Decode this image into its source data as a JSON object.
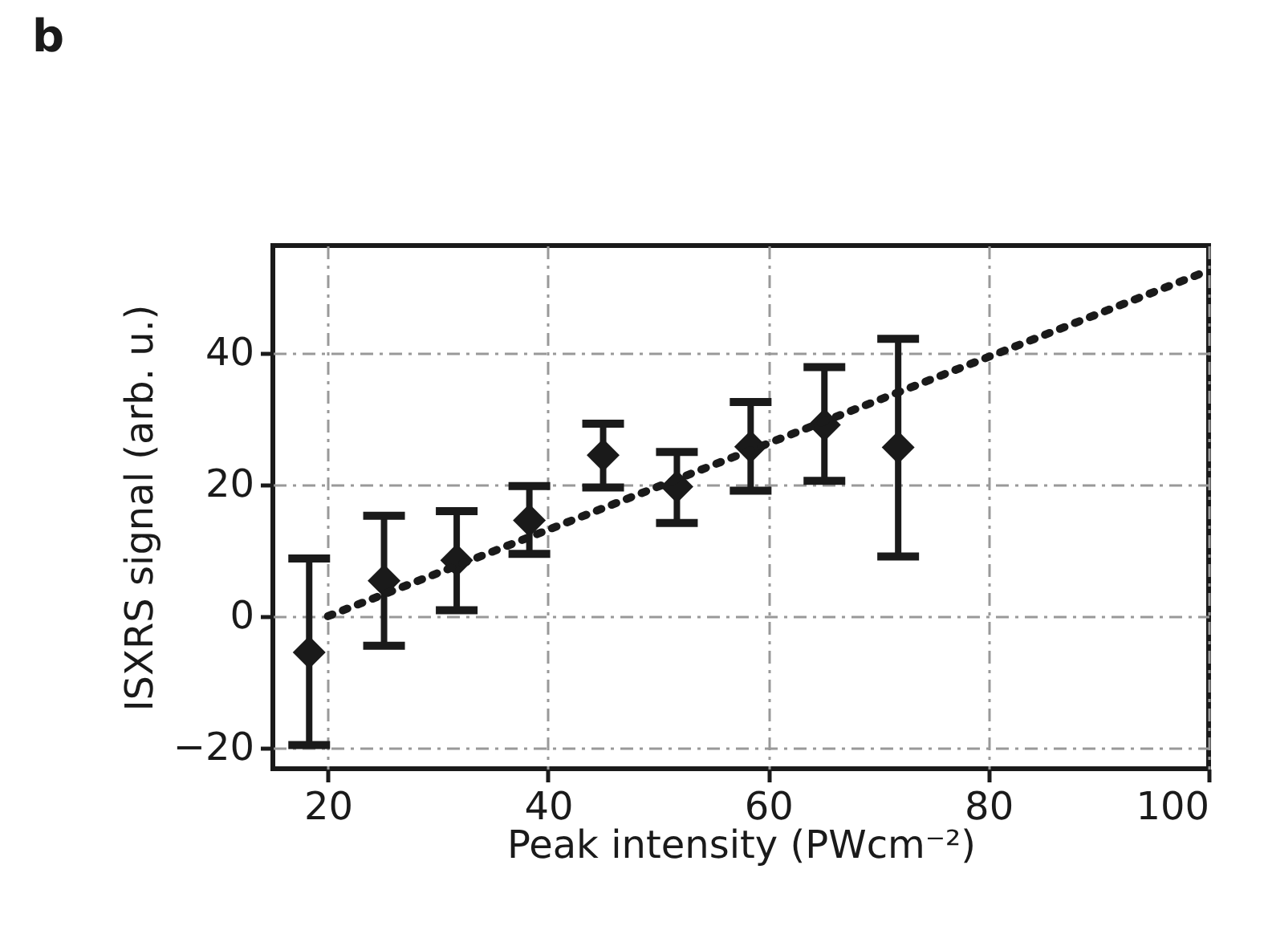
{
  "chart_data": {
    "type": "scatter",
    "title": "b",
    "xlabel": "Peak intensity (PWcm⁻²)",
    "ylabel": "ISXRS signal (arb. u.)",
    "xlim": [
      15,
      100
    ],
    "ylim": [
      -23.2,
      56.4
    ],
    "xticks": [
      20,
      40,
      60,
      80,
      100
    ],
    "yticks": [
      -20,
      0,
      20,
      40
    ],
    "grid": true,
    "series": [
      {
        "type": "scatter",
        "color": "#1a1a1a",
        "marker": "diamond",
        "x": [
          18.3,
          25.1,
          31.7,
          38.3,
          45.0,
          51.7,
          58.4,
          65.1,
          71.8
        ],
        "values": [
          -5.5,
          5.4,
          8.5,
          14.6,
          24.5,
          19.7,
          25.8,
          29.1,
          25.7
        ],
        "errors": [
          [
            -19.6,
            8.8
          ],
          [
            -4.5,
            15.3
          ],
          [
            0.9,
            16.0
          ],
          [
            9.5,
            19.8
          ],
          [
            19.6,
            29.3
          ],
          [
            14.2,
            25.0
          ],
          [
            19.1,
            32.6
          ],
          [
            20.6,
            37.9
          ],
          [
            9.1,
            42.2
          ]
        ]
      },
      {
        "type": "line",
        "color": "#1a1a1a",
        "marker": "none",
        "line_style": "dotted",
        "x": [
          20,
          100
        ],
        "values": [
          0,
          52.6
        ]
      }
    ]
  }
}
